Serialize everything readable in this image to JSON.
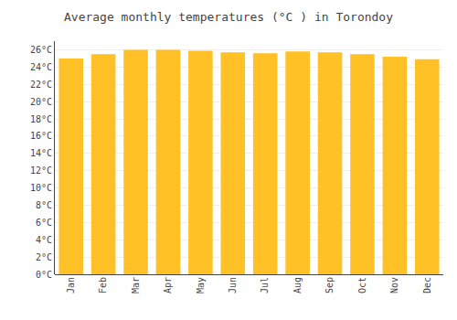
{
  "chart_data": {
    "type": "bar",
    "title": "Average monthly temperatures (°C ) in Torondoy",
    "categories": [
      "Jan",
      "Feb",
      "Mar",
      "Apr",
      "May",
      "Jun",
      "Jul",
      "Aug",
      "Sep",
      "Oct",
      "Nov",
      "Dec"
    ],
    "values": [
      25.0,
      25.5,
      26.0,
      26.0,
      25.9,
      25.7,
      25.6,
      25.8,
      25.7,
      25.5,
      25.2,
      24.9
    ],
    "color": "#FFC125",
    "ylim": [
      0,
      27
    ],
    "yticks": [
      {
        "value": 0,
        "label": "0°C"
      },
      {
        "value": 2,
        "label": "2°C"
      },
      {
        "value": 4,
        "label": "4°C"
      },
      {
        "value": 6,
        "label": "6°C"
      },
      {
        "value": 8,
        "label": "8°C"
      },
      {
        "value": 10,
        "label": "10°C"
      },
      {
        "value": 12,
        "label": "12°C"
      },
      {
        "value": 14,
        "label": "14°C"
      },
      {
        "value": 16,
        "label": "16°C"
      },
      {
        "value": 18,
        "label": "18°C"
      },
      {
        "value": 20,
        "label": "20°C"
      },
      {
        "value": 22,
        "label": "22°C"
      },
      {
        "value": 24,
        "label": "24°C"
      },
      {
        "value": 26,
        "label": "26°C"
      }
    ],
    "grid": true
  }
}
